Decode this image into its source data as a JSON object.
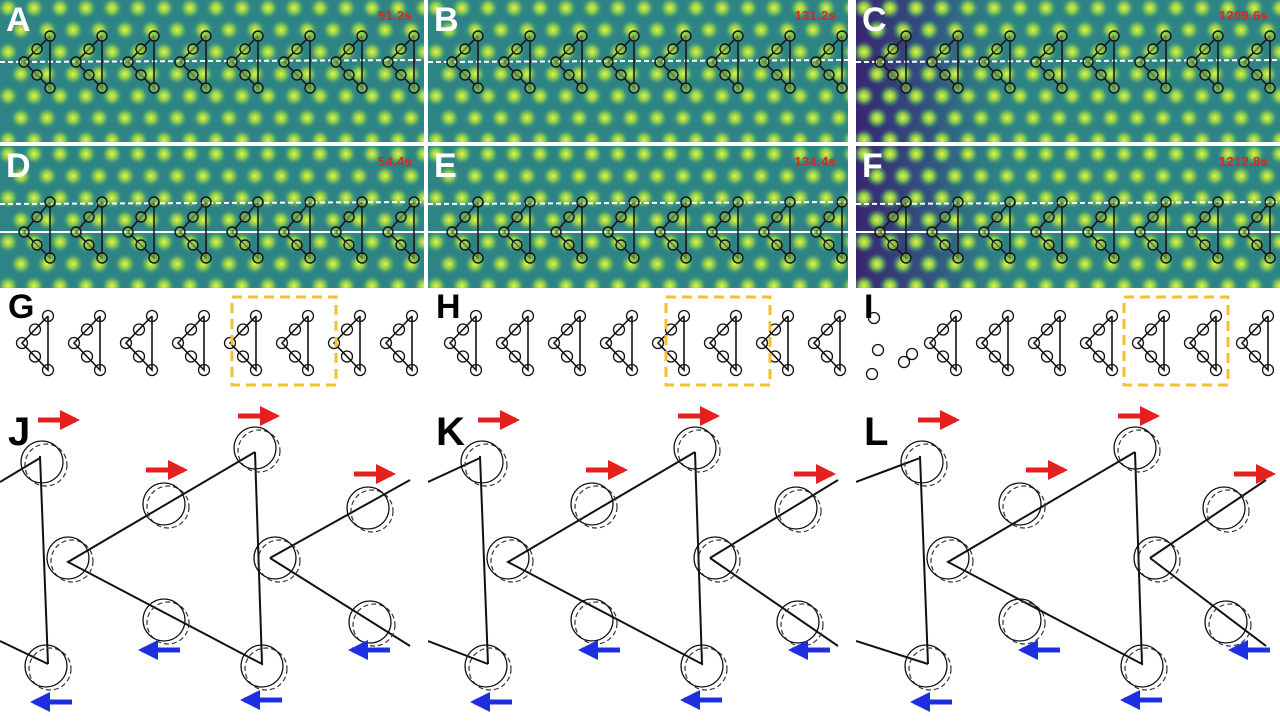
{
  "colors": {
    "timestamp": "#e0261b",
    "arrow_right": "#e3201b",
    "arrow_left": "#1f2fe0",
    "dashed_box": "#f2c12e",
    "image_background": "#2f8a86",
    "atom_spot": "#c7e64a"
  },
  "stm_panels": [
    {
      "id": "A",
      "letter": "A",
      "time": "51.2s"
    },
    {
      "id": "B",
      "letter": "B",
      "time": "131.2s"
    },
    {
      "id": "C",
      "letter": "C",
      "time": "1209.6s"
    },
    {
      "id": "D",
      "letter": "D",
      "time": "54.4s"
    },
    {
      "id": "E",
      "letter": "E",
      "time": "134.4s"
    },
    {
      "id": "F",
      "letter": "F",
      "time": "1212.8s"
    }
  ],
  "diagram_panels": [
    {
      "id": "G",
      "letter": "G"
    },
    {
      "id": "H",
      "letter": "H"
    },
    {
      "id": "I",
      "letter": "I"
    }
  ],
  "detail_panels": [
    {
      "id": "J",
      "letter": "J"
    },
    {
      "id": "K",
      "letter": "K"
    },
    {
      "id": "L",
      "letter": "L"
    }
  ]
}
